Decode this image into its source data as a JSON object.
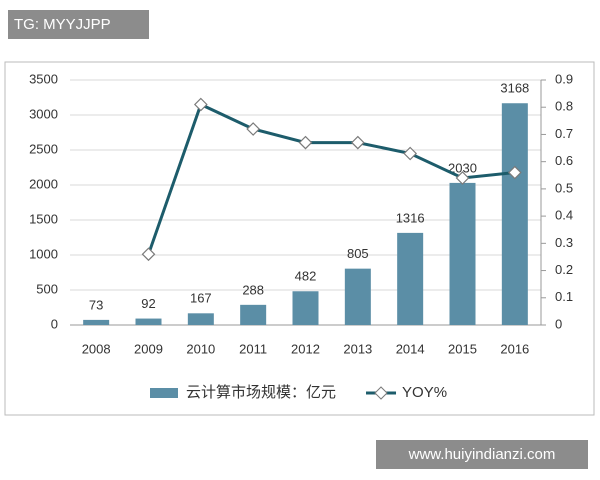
{
  "watermark_top": "TG: MYYJJPP",
  "watermark_bottom": "www.huiyindianzi.com",
  "chart_data": {
    "type": "bar",
    "categories": [
      "2008",
      "2009",
      "2010",
      "2011",
      "2012",
      "2013",
      "2014",
      "2015",
      "2016"
    ],
    "series": [
      {
        "name": "云计算市场规模：亿元",
        "type": "bar",
        "color": "#5b8ea6",
        "values": [
          73,
          92,
          167,
          288,
          482,
          805,
          1316,
          2030,
          3168
        ]
      },
      {
        "name": "YOY%",
        "type": "line",
        "axis": "y2",
        "color": "#1d5c6b",
        "values": [
          null,
          0.26,
          0.81,
          0.72,
          0.67,
          0.67,
          0.63,
          0.54,
          0.56
        ]
      }
    ],
    "ylim": [
      0,
      3500
    ],
    "yticks": [
      0,
      500,
      1000,
      1500,
      2000,
      2500,
      3000,
      3500
    ],
    "y2lim": [
      0,
      0.9
    ],
    "y2ticks": [
      0,
      0.1,
      0.2,
      0.3,
      0.4,
      0.5,
      0.6,
      0.7,
      0.8,
      0.9
    ],
    "grid": true,
    "legend": "bottom"
  }
}
